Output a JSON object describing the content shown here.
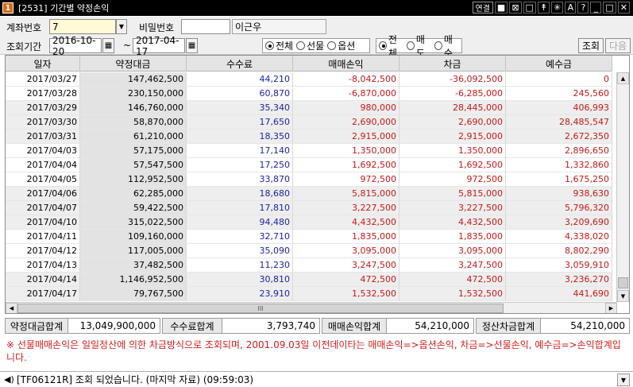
{
  "window": {
    "number": "1",
    "title": "[2531] 기간별 약정손익",
    "tools": [
      "연결",
      "■",
      "⊠",
      "□",
      "↟",
      "✳",
      "A",
      "?",
      "_",
      "□",
      "✕"
    ]
  },
  "form": {
    "account_label": "계좌번호",
    "account_value": "7",
    "password_label": "비밀번호",
    "password_value": "",
    "owner_name": "이근우",
    "period_label": "조회기간",
    "date_from": "2016-10-20",
    "date_sep": "~",
    "date_to": "2017-04-17",
    "product_options": [
      "전체",
      "선물",
      "옵션"
    ],
    "product_selected": "전체",
    "trade_options": [
      "전체",
      "매도",
      "매수"
    ],
    "trade_selected": "전체",
    "query_button": "조회",
    "next_button": "다음"
  },
  "table": {
    "columns": [
      "일자",
      "약정대금",
      "수수료",
      "매매손익",
      "차금",
      "예수금"
    ],
    "rows": [
      [
        "2017/03/27",
        "147,462,500",
        "44,210",
        "-8,042,500",
        "-36,092,500",
        "0"
      ],
      [
        "2017/03/28",
        "230,150,000",
        "60,870",
        "-6,870,000",
        "-6,285,000",
        "245,560"
      ],
      [
        "2017/03/29",
        "146,760,000",
        "35,340",
        "980,000",
        "28,445,000",
        "406,993"
      ],
      [
        "2017/03/30",
        "58,870,000",
        "17,650",
        "2,690,000",
        "2,690,000",
        "28,485,547"
      ],
      [
        "2017/03/31",
        "61,210,000",
        "18,350",
        "2,915,000",
        "2,915,000",
        "2,672,350"
      ],
      [
        "2017/04/03",
        "57,175,000",
        "17,140",
        "1,350,000",
        "1,350,000",
        "2,896,650"
      ],
      [
        "2017/04/04",
        "57,547,500",
        "17,250",
        "1,692,500",
        "1,692,500",
        "1,332,860"
      ],
      [
        "2017/04/05",
        "112,952,500",
        "33,870",
        "972,500",
        "972,500",
        "1,675,250"
      ],
      [
        "2017/04/06",
        "62,285,000",
        "18,680",
        "5,815,000",
        "5,815,000",
        "938,630"
      ],
      [
        "2017/04/07",
        "59,422,500",
        "17,810",
        "3,227,500",
        "3,227,500",
        "5,796,320"
      ],
      [
        "2017/04/10",
        "315,022,500",
        "94,480",
        "4,432,500",
        "4,432,500",
        "3,209,690"
      ],
      [
        "2017/04/11",
        "109,160,000",
        "32,710",
        "1,835,000",
        "1,835,000",
        "4,338,020"
      ],
      [
        "2017/04/12",
        "117,005,000",
        "35,090",
        "3,095,000",
        "3,095,000",
        "8,802,290"
      ],
      [
        "2017/04/13",
        "37,482,500",
        "11,230",
        "3,247,500",
        "3,247,500",
        "3,059,910"
      ],
      [
        "2017/04/14",
        "1,146,952,500",
        "30,810",
        "472,500",
        "472,500",
        "3,236,270"
      ],
      [
        "2017/04/17",
        "79,767,500",
        "23,910",
        "1,532,500",
        "1,532,500",
        "441,690"
      ]
    ],
    "scroll_grip": "III"
  },
  "totals": [
    {
      "label": "약정대금합계",
      "value": "13,049,900,000"
    },
    {
      "label": "수수료합계",
      "value": "3,793,740"
    },
    {
      "label": "매매손익합계",
      "value": "54,210,000"
    },
    {
      "label": "정산차금합계",
      "value": "54,210,000"
    }
  ],
  "note": "※ 선물매매손익은 일일정산에 의한 차금방식으로 조회되며, 2001.09.03일 이전데이타는 매매손익=>옵션손익, 차금=>선물손익, 예수금=>손익합계입니다.",
  "status": {
    "message": "[TF06121R] 조회 되었습니다. (마지막 자료) (09:59:03)"
  },
  "colors": {
    "blue": "#1b24a8",
    "red": "#c91818",
    "note_red": "#d81c1c",
    "title_bg": "#000000",
    "badge": "#d86a10"
  }
}
